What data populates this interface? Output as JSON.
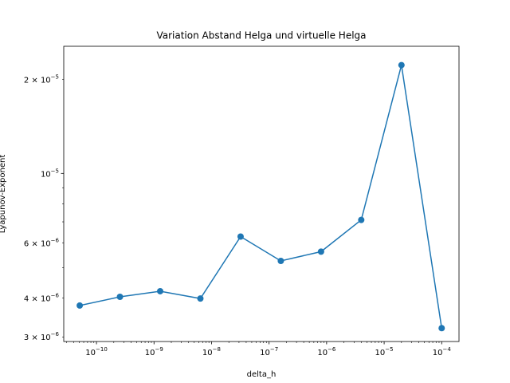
{
  "chart_data": {
    "type": "line",
    "title": "Variation Abstand Helga und virtuelle Helga",
    "xlabel": "delta_h",
    "ylabel": "Lyapunov-Exponent",
    "xscale": "log",
    "yscale": "log",
    "xlim": [
      2.7e-11,
      0.0002
    ],
    "ylim": [
      2.9e-06,
      2.55e-05
    ],
    "grid": false,
    "legend": "none",
    "color": "#1f77b4",
    "marker": "circle",
    "x_major_ticks": [
      {
        "value": 1e-10,
        "base": "10",
        "exp": "−10"
      },
      {
        "value": 1e-09,
        "base": "10",
        "exp": "−9"
      },
      {
        "value": 1e-08,
        "base": "10",
        "exp": "−8"
      },
      {
        "value": 1e-07,
        "base": "10",
        "exp": "−7"
      },
      {
        "value": 1e-06,
        "base": "10",
        "exp": "−6"
      },
      {
        "value": 1e-05,
        "base": "10",
        "exp": "−5"
      },
      {
        "value": 0.0001,
        "base": "10",
        "exp": "−4"
      }
    ],
    "y_labeled_ticks": [
      {
        "value": 3e-06,
        "mant": "3 × 10",
        "exp": "−6"
      },
      {
        "value": 4e-06,
        "mant": "4 × 10",
        "exp": "−6"
      },
      {
        "value": 6e-06,
        "mant": "6 × 10",
        "exp": "−6"
      },
      {
        "value": 1e-05,
        "mant": "10",
        "exp": "−5"
      },
      {
        "value": 2e-05,
        "mant": "2 × 10",
        "exp": "−5"
      }
    ],
    "y_minor_unlabeled": [
      5e-06,
      7e-06,
      8e-06,
      9e-06
    ],
    "series": [
      {
        "x": [
          5.12e-11,
          2.56e-10,
          1.28e-09,
          6.4e-09,
          3.2e-08,
          1.6e-07,
          8e-07,
          4e-06,
          2e-05,
          0.0001
        ],
        "y": [
          3.78e-06,
          4.03e-06,
          4.2e-06,
          3.98e-06,
          6.28e-06,
          5.25e-06,
          5.62e-06,
          7.1e-06,
          2.22e-05,
          3.2e-06
        ]
      }
    ]
  }
}
